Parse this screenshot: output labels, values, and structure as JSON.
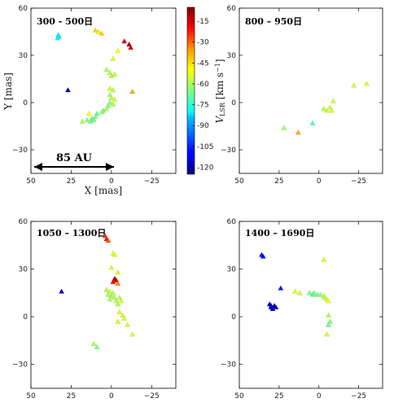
{
  "chart_data": [
    {
      "type": "scatter",
      "title": "300 - 500日",
      "xlabel": "X [mas]",
      "ylabel": "Y [mas]",
      "xlim": [
        50,
        -40
      ],
      "ylim": [
        -45,
        60
      ],
      "xticks": [
        "50",
        "25",
        "0",
        "−25"
      ],
      "yticks": [
        "60",
        "30",
        "0",
        "−30"
      ],
      "scalebar": {
        "label": "85 AU",
        "x_from": 50,
        "x_to": 0,
        "y": -40
      },
      "points": [
        {
          "x": 33,
          "y": 43,
          "v": -80
        },
        {
          "x": 33.5,
          "y": 41,
          "v": -80
        },
        {
          "x": 32.5,
          "y": 42,
          "v": -82
        },
        {
          "x": 27,
          "y": 8,
          "v": -120
        },
        {
          "x": 10,
          "y": 46,
          "v": -45
        },
        {
          "x": 8,
          "y": 45,
          "v": -48
        },
        {
          "x": 6,
          "y": 44,
          "v": -45
        },
        {
          "x": -8,
          "y": 39,
          "v": -15
        },
        {
          "x": -11,
          "y": 37,
          "v": -10
        },
        {
          "x": -12,
          "y": 35,
          "v": -15
        },
        {
          "x": -4,
          "y": 33,
          "v": -50
        },
        {
          "x": -1,
          "y": 28,
          "v": -55
        },
        {
          "x": 3,
          "y": 21,
          "v": -60
        },
        {
          "x": 1,
          "y": 19,
          "v": -58
        },
        {
          "x": 0,
          "y": 17,
          "v": -60
        },
        {
          "x": -2,
          "y": 18,
          "v": -57
        },
        {
          "x": 1,
          "y": 9,
          "v": -55
        },
        {
          "x": -1,
          "y": 8,
          "v": -58
        },
        {
          "x": -13,
          "y": 7,
          "v": -40
        },
        {
          "x": 1,
          "y": 5,
          "v": -60
        },
        {
          "x": 0,
          "y": 3,
          "v": -58
        },
        {
          "x": -2,
          "y": 2,
          "v": -55
        },
        {
          "x": 1,
          "y": 0,
          "v": -62
        },
        {
          "x": -1,
          "y": -1,
          "v": -60
        },
        {
          "x": 2,
          "y": -2,
          "v": -65
        },
        {
          "x": 3,
          "y": -4,
          "v": -60
        },
        {
          "x": 5,
          "y": -5,
          "v": -65
        },
        {
          "x": 6,
          "y": -6,
          "v": -62
        },
        {
          "x": 9,
          "y": -7,
          "v": -70
        },
        {
          "x": 14,
          "y": -7,
          "v": -50
        },
        {
          "x": 10,
          "y": -9,
          "v": -65
        },
        {
          "x": 12,
          "y": -10,
          "v": -68
        },
        {
          "x": 15,
          "y": -11,
          "v": -65
        },
        {
          "x": 18,
          "y": -12,
          "v": -60
        },
        {
          "x": 13,
          "y": -12,
          "v": -66
        },
        {
          "x": 11,
          "y": -11,
          "v": -67
        }
      ]
    },
    {
      "type": "scatter",
      "title": "800 – 950日",
      "xlim": [
        50,
        -40
      ],
      "ylim": [
        -45,
        60
      ],
      "xticks": [
        "50",
        "25",
        "0",
        "−25"
      ],
      "yticks": [
        "60",
        "30",
        "0",
        "−30"
      ],
      "colorbar": {
        "label": "V_LSR [km s^-1]",
        "ticks": [
          "-15",
          "-30",
          "-45",
          "-60",
          "-75",
          "-90",
          "-105",
          "-120"
        ],
        "vmin": -125,
        "vmax": -5
      },
      "points": [
        {
          "x": -30,
          "y": 12,
          "v": -55
        },
        {
          "x": -22,
          "y": 11,
          "v": -55
        },
        {
          "x": -9,
          "y": 1,
          "v": -55
        },
        {
          "x": -7,
          "y": -3,
          "v": -55
        },
        {
          "x": -8,
          "y": -5,
          "v": -55
        },
        {
          "x": -5,
          "y": -5,
          "v": -55
        },
        {
          "x": -3,
          "y": -4,
          "v": -60
        },
        {
          "x": 4,
          "y": -13,
          "v": -70
        },
        {
          "x": 13,
          "y": -19,
          "v": -40
        },
        {
          "x": 22,
          "y": -16,
          "v": -60
        }
      ]
    },
    {
      "type": "scatter",
      "title": "1050 – 1300日",
      "xlim": [
        50,
        -40
      ],
      "ylim": [
        -45,
        60
      ],
      "xticks": [
        "50",
        "25",
        "0",
        "−25"
      ],
      "yticks": [
        "60",
        "30",
        "0",
        "−30"
      ],
      "points": [
        {
          "x": 4,
          "y": 51,
          "v": -25
        },
        {
          "x": 3,
          "y": 49,
          "v": -20
        },
        {
          "x": 2,
          "y": 48,
          "v": -30
        },
        {
          "x": -1,
          "y": 40,
          "v": -50
        },
        {
          "x": -2,
          "y": 39,
          "v": -55
        },
        {
          "x": 0,
          "y": 31,
          "v": -55
        },
        {
          "x": -4,
          "y": 28,
          "v": -55
        },
        {
          "x": -2,
          "y": 24,
          "v": -10
        },
        {
          "x": -3,
          "y": 23,
          "v": -15
        },
        {
          "x": -1,
          "y": 22,
          "v": -20
        },
        {
          "x": -4,
          "y": 21,
          "v": -35
        },
        {
          "x": 31,
          "y": 16,
          "v": -115
        },
        {
          "x": 3,
          "y": 17,
          "v": -60
        },
        {
          "x": 1,
          "y": 16,
          "v": -55
        },
        {
          "x": -1,
          "y": 15,
          "v": -58
        },
        {
          "x": 2,
          "y": 14,
          "v": -60
        },
        {
          "x": 0,
          "y": 13,
          "v": -62
        },
        {
          "x": -2,
          "y": 12,
          "v": -58
        },
        {
          "x": 1,
          "y": 11,
          "v": -60
        },
        {
          "x": -3,
          "y": 10,
          "v": -60
        },
        {
          "x": -5,
          "y": 12,
          "v": -58
        },
        {
          "x": -6,
          "y": 10,
          "v": -55
        },
        {
          "x": -4,
          "y": 8,
          "v": -60
        },
        {
          "x": -5,
          "y": 3,
          "v": -55
        },
        {
          "x": -7,
          "y": 1,
          "v": -55
        },
        {
          "x": -8,
          "y": -1,
          "v": -55
        },
        {
          "x": -4,
          "y": -3,
          "v": -55
        },
        {
          "x": -10,
          "y": -5,
          "v": -55
        },
        {
          "x": -13,
          "y": -11,
          "v": -55
        },
        {
          "x": 11,
          "y": -17,
          "v": -60
        },
        {
          "x": 9,
          "y": -19,
          "v": -65
        }
      ]
    },
    {
      "type": "scatter",
      "title": "1400 – 1690日",
      "xlim": [
        50,
        -40
      ],
      "ylim": [
        -45,
        60
      ],
      "xticks": [
        "50",
        "25",
        "0",
        "−25"
      ],
      "yticks": [
        "60",
        "30",
        "0",
        "−30"
      ],
      "points": [
        {
          "x": 36,
          "y": 39,
          "v": -108
        },
        {
          "x": 35,
          "y": 38,
          "v": -110
        },
        {
          "x": 31,
          "y": 8,
          "v": -118
        },
        {
          "x": 30,
          "y": 7,
          "v": -120
        },
        {
          "x": 28,
          "y": 7,
          "v": -115
        },
        {
          "x": 29,
          "y": 5,
          "v": -118
        },
        {
          "x": 27,
          "y": 6,
          "v": -116
        },
        {
          "x": 30,
          "y": 6,
          "v": -117
        },
        {
          "x": 24,
          "y": 18,
          "v": -108
        },
        {
          "x": -3,
          "y": 36,
          "v": -55
        },
        {
          "x": 15,
          "y": 16,
          "v": -55
        },
        {
          "x": 12,
          "y": 15,
          "v": -55
        },
        {
          "x": 6,
          "y": 15,
          "v": -65
        },
        {
          "x": 4,
          "y": 14,
          "v": -70
        },
        {
          "x": 3,
          "y": 15,
          "v": -68
        },
        {
          "x": 1,
          "y": 14,
          "v": -66
        },
        {
          "x": -1,
          "y": 14,
          "v": -62
        },
        {
          "x": -3,
          "y": 13,
          "v": -60
        },
        {
          "x": -4,
          "y": 12,
          "v": -58
        },
        {
          "x": -5,
          "y": 11,
          "v": -56
        },
        {
          "x": -6,
          "y": 10,
          "v": -50
        },
        {
          "x": -6,
          "y": 1,
          "v": -60
        },
        {
          "x": -7,
          "y": -3,
          "v": -65
        },
        {
          "x": -6,
          "y": -5,
          "v": -68
        },
        {
          "x": -5,
          "y": -11,
          "v": -55
        }
      ]
    }
  ]
}
